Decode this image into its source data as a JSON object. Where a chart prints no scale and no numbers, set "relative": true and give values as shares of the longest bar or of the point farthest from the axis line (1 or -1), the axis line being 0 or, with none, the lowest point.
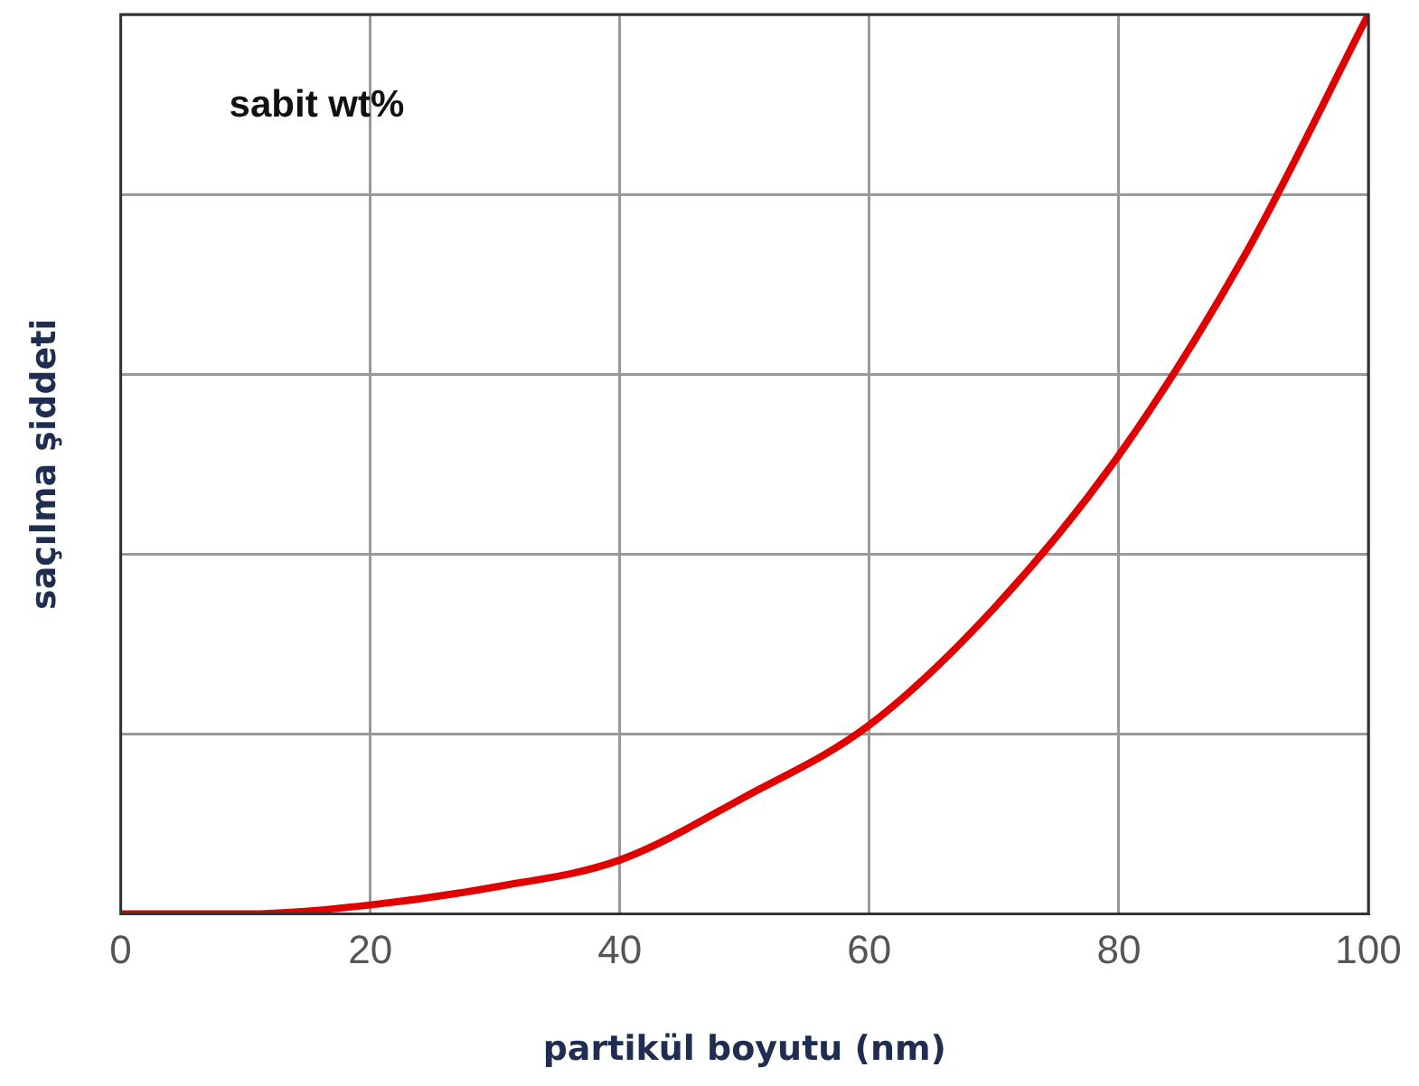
{
  "chart_data": {
    "type": "line",
    "xlabel": "partikül boyutu (nm)",
    "ylabel": "saçılma şiddeti",
    "annotations": [
      "sabit wt%"
    ],
    "relative": true,
    "x": [
      0,
      10,
      20,
      30,
      40,
      50,
      60,
      70,
      80,
      90,
      100
    ],
    "series": [
      {
        "color": "#e00000",
        "values": [
          0,
          0,
          0.01,
          0.03,
          0.06,
          0.13,
          0.21,
          0.34,
          0.51,
          0.73,
          1
        ]
      }
    ],
    "xlim": [
      0,
      100
    ],
    "xticks": [
      0,
      20,
      40,
      60,
      80,
      100
    ],
    "grid": true,
    "legend": false,
    "marker": "none",
    "line_style": "solid"
  }
}
